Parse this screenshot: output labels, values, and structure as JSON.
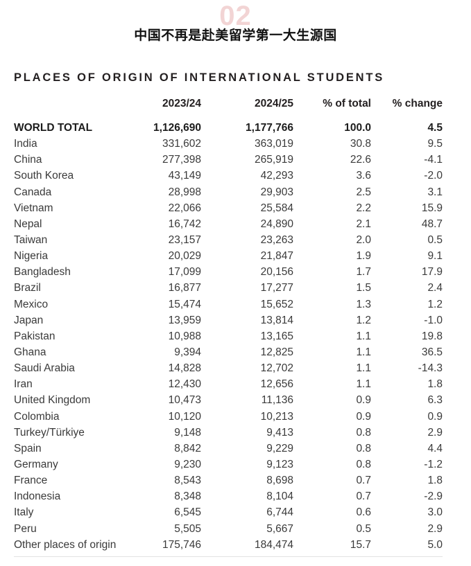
{
  "page": {
    "page_number": "02",
    "title": "中国不再是赴美留学第一大生源国"
  },
  "colors": {
    "accent_pink": "#f2d4d4",
    "text": "#3a3a3a",
    "bold_text": "#1c1c1c",
    "rule": "#e2e2e2"
  },
  "table": {
    "title": "PLACES OF ORIGIN OF INTERNATIONAL STUDENTS",
    "columns": [
      "",
      "2023/24",
      "2024/25",
      "% of total",
      "% change"
    ],
    "rows": [
      {
        "place": "WORLD TOTAL",
        "y2324": "1,126,690",
        "y2425": "1,177,766",
        "pct_total": "100.0",
        "pct_change": "4.5",
        "bold": true
      },
      {
        "place": "India",
        "y2324": "331,602",
        "y2425": "363,019",
        "pct_total": "30.8",
        "pct_change": "9.5"
      },
      {
        "place": "China",
        "y2324": "277,398",
        "y2425": "265,919",
        "pct_total": "22.6",
        "pct_change": "-4.1"
      },
      {
        "place": "South Korea",
        "y2324": "43,149",
        "y2425": "42,293",
        "pct_total": "3.6",
        "pct_change": "-2.0"
      },
      {
        "place": "Canada",
        "y2324": "28,998",
        "y2425": "29,903",
        "pct_total": "2.5",
        "pct_change": "3.1"
      },
      {
        "place": "Vietnam",
        "y2324": "22,066",
        "y2425": "25,584",
        "pct_total": "2.2",
        "pct_change": "15.9"
      },
      {
        "place": "Nepal",
        "y2324": "16,742",
        "y2425": "24,890",
        "pct_total": "2.1",
        "pct_change": "48.7"
      },
      {
        "place": "Taiwan",
        "y2324": "23,157",
        "y2425": "23,263",
        "pct_total": "2.0",
        "pct_change": "0.5"
      },
      {
        "place": "Nigeria",
        "y2324": "20,029",
        "y2425": "21,847",
        "pct_total": "1.9",
        "pct_change": "9.1"
      },
      {
        "place": "Bangladesh",
        "y2324": "17,099",
        "y2425": "20,156",
        "pct_total": "1.7",
        "pct_change": "17.9"
      },
      {
        "place": "Brazil",
        "y2324": "16,877",
        "y2425": "17,277",
        "pct_total": "1.5",
        "pct_change": "2.4"
      },
      {
        "place": "Mexico",
        "y2324": "15,474",
        "y2425": "15,652",
        "pct_total": "1.3",
        "pct_change": "1.2"
      },
      {
        "place": "Japan",
        "y2324": "13,959",
        "y2425": "13,814",
        "pct_total": "1.2",
        "pct_change": "-1.0"
      },
      {
        "place": "Pakistan",
        "y2324": "10,988",
        "y2425": "13,165",
        "pct_total": "1.1",
        "pct_change": "19.8"
      },
      {
        "place": "Ghana",
        "y2324": "9,394",
        "y2425": "12,825",
        "pct_total": "1.1",
        "pct_change": "36.5"
      },
      {
        "place": "Saudi Arabia",
        "y2324": "14,828",
        "y2425": "12,702",
        "pct_total": "1.1",
        "pct_change": "-14.3"
      },
      {
        "place": "Iran",
        "y2324": "12,430",
        "y2425": "12,656",
        "pct_total": "1.1",
        "pct_change": "1.8"
      },
      {
        "place": "United Kingdom",
        "y2324": "10,473",
        "y2425": "11,136",
        "pct_total": "0.9",
        "pct_change": "6.3"
      },
      {
        "place": "Colombia",
        "y2324": "10,120",
        "y2425": "10,213",
        "pct_total": "0.9",
        "pct_change": "0.9"
      },
      {
        "place": "Turkey/Türkiye",
        "y2324": "9,148",
        "y2425": "9,413",
        "pct_total": "0.8",
        "pct_change": "2.9"
      },
      {
        "place": "Spain",
        "y2324": "8,842",
        "y2425": "9,229",
        "pct_total": "0.8",
        "pct_change": "4.4"
      },
      {
        "place": "Germany",
        "y2324": "9,230",
        "y2425": "9,123",
        "pct_total": "0.8",
        "pct_change": "-1.2"
      },
      {
        "place": "France",
        "y2324": "8,543",
        "y2425": "8,698",
        "pct_total": "0.7",
        "pct_change": "1.8"
      },
      {
        "place": "Indonesia",
        "y2324": "8,348",
        "y2425": "8,104",
        "pct_total": "0.7",
        "pct_change": "-2.9"
      },
      {
        "place": "Italy",
        "y2324": "6,545",
        "y2425": "6,744",
        "pct_total": "0.6",
        "pct_change": "3.0"
      },
      {
        "place": "Peru",
        "y2324": "5,505",
        "y2425": "5,667",
        "pct_total": "0.5",
        "pct_change": "2.9"
      },
      {
        "place": "Other places of origin",
        "y2324": "175,746",
        "y2425": "184,474",
        "pct_total": "15.7",
        "pct_change": "5.0"
      }
    ]
  }
}
